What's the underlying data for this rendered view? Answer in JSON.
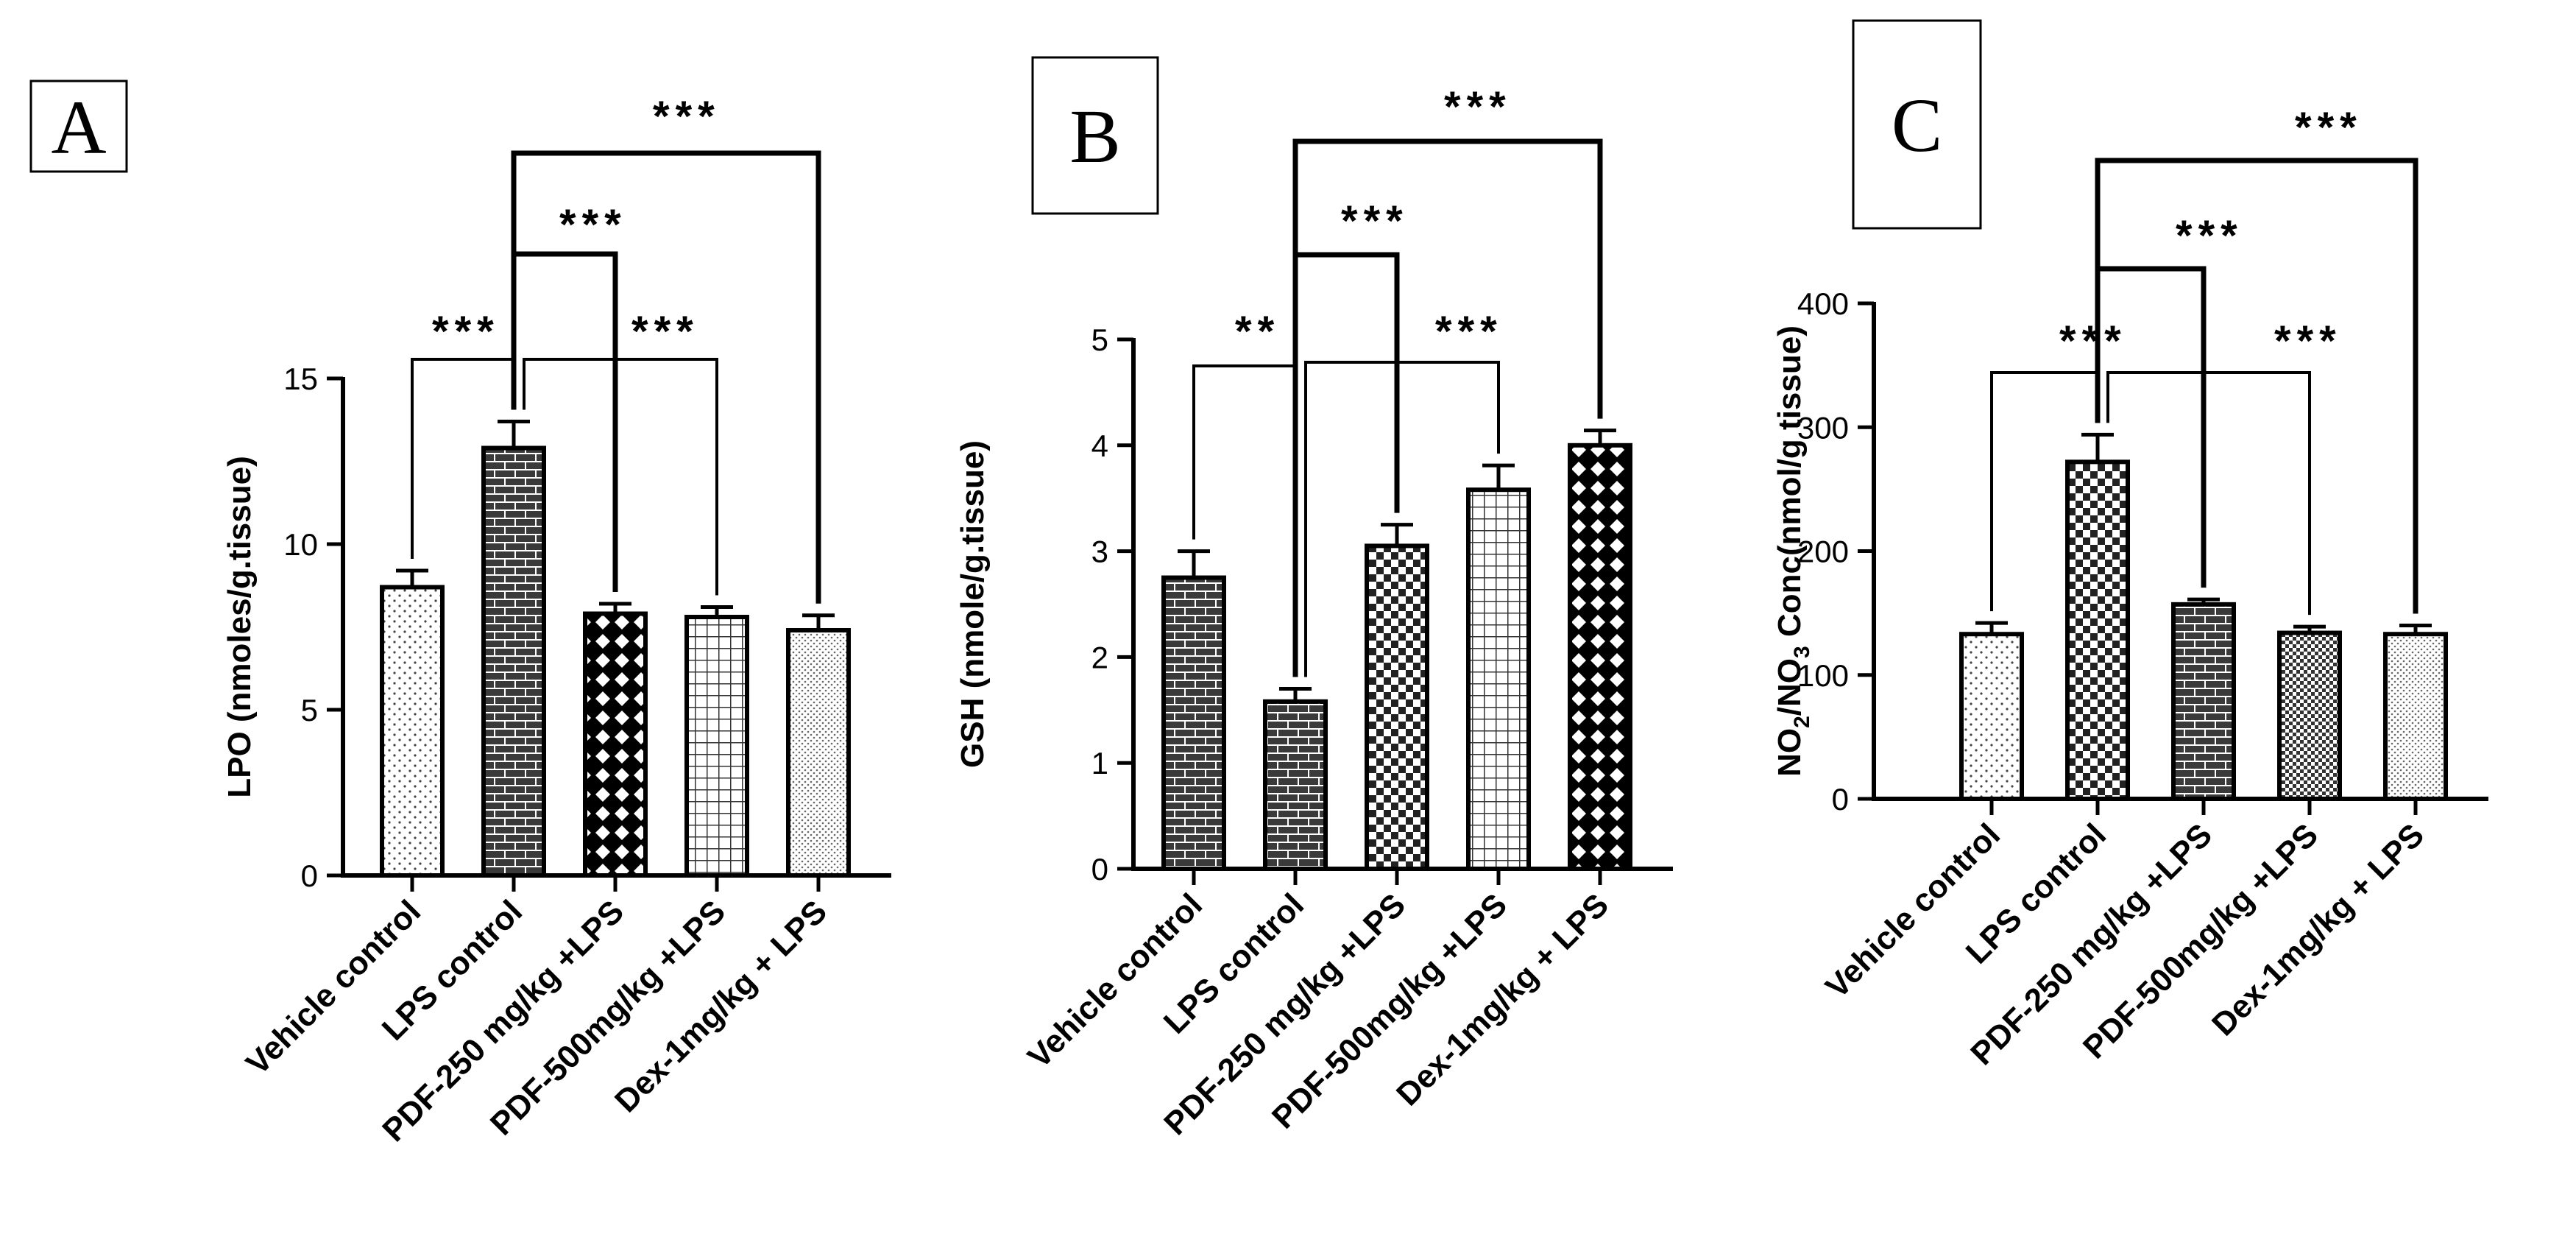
{
  "chart_data": [
    {
      "type": "bar",
      "panel": "A",
      "ylabel": "LPO (nmoles/g.tissue)",
      "ylim": [
        0,
        15
      ],
      "yticks": [
        0,
        5,
        10,
        15
      ],
      "categories": [
        "Vehicle control",
        "LPS control",
        "PDF-250 mg/kg +LPS",
        "PDF-500mg/kg +LPS",
        "Dex-1mg/kg + LPS"
      ],
      "values": [
        8.7,
        12.9,
        7.9,
        7.8,
        7.4
      ],
      "errors": [
        0.5,
        0.8,
        0.3,
        0.3,
        0.45
      ],
      "significance": [
        {
          "from": 0,
          "to": 1,
          "label": "***"
        },
        {
          "from": 1,
          "to": 2,
          "label": "***"
        },
        {
          "from": 1,
          "to": 3,
          "label": "***"
        },
        {
          "from": 1,
          "to": 4,
          "label": "***"
        }
      ]
    },
    {
      "type": "bar",
      "panel": "B",
      "ylabel": "GSH (nmole/g.tissue)",
      "ylim": [
        0,
        5
      ],
      "yticks": [
        0,
        1,
        2,
        3,
        4,
        5
      ],
      "categories": [
        "Vehicle control",
        "LPS control",
        "PDF-250 mg/kg +LPS",
        "PDF-500mg/kg +LPS",
        "Dex-1mg/kg + LPS"
      ],
      "values": [
        2.75,
        1.58,
        3.05,
        3.58,
        4.0
      ],
      "errors": [
        0.25,
        0.12,
        0.2,
        0.23,
        0.14
      ],
      "significance": [
        {
          "from": 0,
          "to": 1,
          "label": "**"
        },
        {
          "from": 1,
          "to": 2,
          "label": "***"
        },
        {
          "from": 1,
          "to": 3,
          "label": "***"
        },
        {
          "from": 1,
          "to": 4,
          "label": "***"
        }
      ]
    },
    {
      "type": "bar",
      "panel": "C",
      "ylabel": "NO2/NO3 Conc(nmol/g tissue)",
      "ylim": [
        0,
        400
      ],
      "yticks": [
        0,
        100,
        200,
        300,
        400
      ],
      "categories": [
        "Vehicle control",
        "LPS control",
        "PDF-250 mg/kg +LPS",
        "PDF-500mg/kg +LPS",
        "Dex-1mg/kg + LPS"
      ],
      "values": [
        133,
        272,
        157,
        134,
        133
      ],
      "errors": [
        9,
        22,
        4,
        5,
        7
      ],
      "significance": [
        {
          "from": 0,
          "to": 1,
          "label": "***"
        },
        {
          "from": 1,
          "to": 2,
          "label": "***"
        },
        {
          "from": 1,
          "to": 3,
          "label": "***"
        },
        {
          "from": 1,
          "to": 4,
          "label": "***"
        }
      ]
    }
  ]
}
